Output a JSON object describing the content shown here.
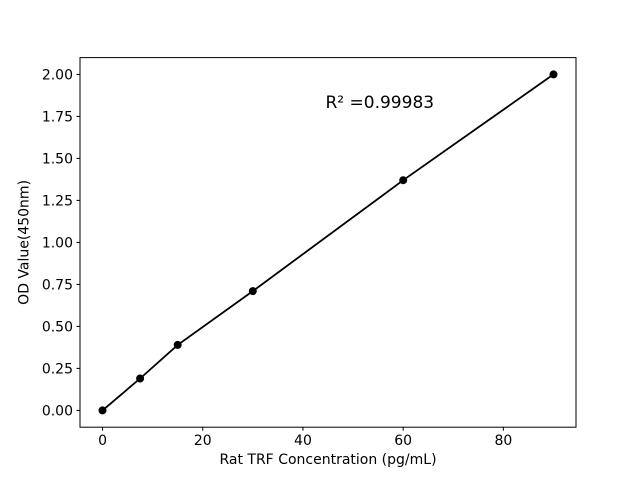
{
  "figure": {
    "background": "#ffffff",
    "text_color": "#000000"
  },
  "chart_data": {
    "type": "line",
    "title": "",
    "xlabel": "Rat TRF Concentration (pg/mL)",
    "ylabel": "OD Value(450nm)",
    "x": [
      0,
      7.5,
      15,
      30,
      60,
      90
    ],
    "y": [
      0.0,
      0.19,
      0.39,
      0.71,
      1.37,
      2.0
    ],
    "series_name": "standard-curve",
    "line_color": "#000000",
    "marker_color": "#000000",
    "marker": "circle",
    "xlim": [
      -4.5,
      94.5
    ],
    "ylim": [
      -0.1,
      2.1
    ],
    "xticks": [
      {
        "v": 0,
        "label": "0"
      },
      {
        "v": 20,
        "label": "20"
      },
      {
        "v": 40,
        "label": "40"
      },
      {
        "v": 60,
        "label": "60"
      },
      {
        "v": 80,
        "label": "80"
      }
    ],
    "yticks": [
      {
        "v": 0.0,
        "label": "0.00"
      },
      {
        "v": 0.25,
        "label": "0.25"
      },
      {
        "v": 0.5,
        "label": "0.50"
      },
      {
        "v": 0.75,
        "label": "0.75"
      },
      {
        "v": 1.0,
        "label": "1.00"
      },
      {
        "v": 1.25,
        "label": "1.25"
      },
      {
        "v": 1.5,
        "label": "1.50"
      },
      {
        "v": 1.75,
        "label": "1.75"
      },
      {
        "v": 2.0,
        "label": "2.00"
      }
    ],
    "annotation": {
      "text": "R² =0.99983",
      "x": 44.5,
      "y": 1.8
    },
    "grid": false,
    "legend": null
  }
}
